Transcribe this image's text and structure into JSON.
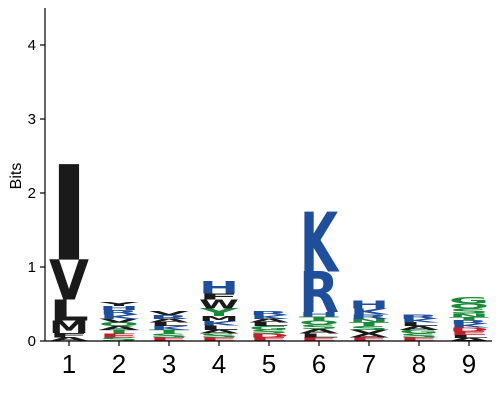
{
  "chart_data": {
    "type": "sequence-logo",
    "title": "",
    "ylabel": "Bits",
    "xlabel": "",
    "ylim": [
      0,
      4.5
    ],
    "yticks": [
      0,
      1,
      2,
      3,
      4
    ],
    "positions": [
      1,
      2,
      3,
      4,
      5,
      6,
      7,
      8,
      9
    ],
    "colors": {
      "hydrophobic": "#1a1a1a",
      "basic": "#1f4e9a",
      "polar": "#1a8a3a",
      "acidic": "#c21e2b",
      "neutral": "#6a3d9a"
    },
    "stacks": [
      {
        "position": 1,
        "letters": [
          {
            "letter": "A",
            "bits": 0.05,
            "color": "#1a1a1a"
          },
          {
            "letter": "F",
            "bits": 0.06,
            "color": "#1a1a1a"
          },
          {
            "letter": "M",
            "bits": 0.17,
            "color": "#1a1a1a"
          },
          {
            "letter": "L",
            "bits": 0.28,
            "color": "#1a1a1a"
          },
          {
            "letter": "V",
            "bits": 0.54,
            "color": "#1a1a1a"
          },
          {
            "letter": "I",
            "bits": 1.29,
            "color": "#1a1a1a"
          }
        ]
      },
      {
        "position": 2,
        "letters": [
          {
            "letter": "S",
            "bits": 0.05,
            "color": "#1a8a3a"
          },
          {
            "letter": "E",
            "bits": 0.05,
            "color": "#c21e2b"
          },
          {
            "letter": "T",
            "bits": 0.05,
            "color": "#1a8a3a"
          },
          {
            "letter": "A",
            "bits": 0.05,
            "color": "#1a1a1a"
          },
          {
            "letter": "Q",
            "bits": 0.05,
            "color": "#1a8a3a"
          },
          {
            "letter": "V",
            "bits": 0.05,
            "color": "#1a1a1a"
          },
          {
            "letter": "K",
            "bits": 0.06,
            "color": "#1f4e9a"
          },
          {
            "letter": "R",
            "bits": 0.06,
            "color": "#1f4e9a"
          },
          {
            "letter": "H",
            "bits": 0.05,
            "color": "#1f4e9a"
          },
          {
            "letter": "Y",
            "bits": 0.05,
            "color": "#1a1a1a"
          }
        ]
      },
      {
        "position": 3,
        "letters": [
          {
            "letter": "E",
            "bits": 0.05,
            "color": "#c21e2b"
          },
          {
            "letter": "S",
            "bits": 0.05,
            "color": "#1a8a3a"
          },
          {
            "letter": "T",
            "bits": 0.05,
            "color": "#1a8a3a"
          },
          {
            "letter": "K",
            "bits": 0.05,
            "color": "#1f4e9a"
          },
          {
            "letter": "L",
            "bits": 0.05,
            "color": "#1a1a1a"
          },
          {
            "letter": "A",
            "bits": 0.05,
            "color": "#1a1a1a"
          },
          {
            "letter": "R",
            "bits": 0.05,
            "color": "#1f4e9a"
          },
          {
            "letter": "V",
            "bits": 0.05,
            "color": "#1a1a1a"
          }
        ]
      },
      {
        "position": 4,
        "letters": [
          {
            "letter": "E",
            "bits": 0.05,
            "color": "#c21e2b"
          },
          {
            "letter": "S",
            "bits": 0.05,
            "color": "#1a8a3a"
          },
          {
            "letter": "A",
            "bits": 0.05,
            "color": "#1a1a1a"
          },
          {
            "letter": "L",
            "bits": 0.06,
            "color": "#1a1a1a"
          },
          {
            "letter": "K",
            "bits": 0.06,
            "color": "#1f4e9a"
          },
          {
            "letter": "M",
            "bits": 0.07,
            "color": "#1a1a1a"
          },
          {
            "letter": "Y",
            "bits": 0.1,
            "color": "#1a8a3a"
          },
          {
            "letter": "W",
            "bits": 0.12,
            "color": "#1a1a1a"
          },
          {
            "letter": "F",
            "bits": 0.08,
            "color": "#1a1a1a"
          },
          {
            "letter": "H",
            "bits": 0.17,
            "color": "#1f4e9a"
          }
        ]
      },
      {
        "position": 5,
        "letters": [
          {
            "letter": "E",
            "bits": 0.05,
            "color": "#c21e2b"
          },
          {
            "letter": "D",
            "bits": 0.05,
            "color": "#c21e2b"
          },
          {
            "letter": "S",
            "bits": 0.05,
            "color": "#1a8a3a"
          },
          {
            "letter": "G",
            "bits": 0.05,
            "color": "#1a8a3a"
          },
          {
            "letter": "L",
            "bits": 0.05,
            "color": "#1a1a1a"
          },
          {
            "letter": "A",
            "bits": 0.05,
            "color": "#1a1a1a"
          },
          {
            "letter": "K",
            "bits": 0.05,
            "color": "#1f4e9a"
          },
          {
            "letter": "R",
            "bits": 0.05,
            "color": "#1f4e9a"
          }
        ]
      },
      {
        "position": 6,
        "letters": [
          {
            "letter": "E",
            "bits": 0.05,
            "color": "#c21e2b"
          },
          {
            "letter": "L",
            "bits": 0.05,
            "color": "#1a1a1a"
          },
          {
            "letter": "A",
            "bits": 0.06,
            "color": "#1a1a1a"
          },
          {
            "letter": "S",
            "bits": 0.06,
            "color": "#1a8a3a"
          },
          {
            "letter": "Q",
            "bits": 0.05,
            "color": "#1a8a3a"
          },
          {
            "letter": "T",
            "bits": 0.06,
            "color": "#1a8a3a"
          },
          {
            "letter": "H",
            "bits": 0.06,
            "color": "#1f4e9a"
          },
          {
            "letter": "R",
            "bits": 0.55,
            "color": "#1f4e9a"
          },
          {
            "letter": "K",
            "bits": 0.81,
            "color": "#1f4e9a"
          }
        ]
      },
      {
        "position": 7,
        "letters": [
          {
            "letter": "E",
            "bits": 0.05,
            "color": "#c21e2b"
          },
          {
            "letter": "A",
            "bits": 0.05,
            "color": "#1a1a1a"
          },
          {
            "letter": "V",
            "bits": 0.05,
            "color": "#1a1a1a"
          },
          {
            "letter": "S",
            "bits": 0.05,
            "color": "#1a8a3a"
          },
          {
            "letter": "T",
            "bits": 0.05,
            "color": "#1a8a3a"
          },
          {
            "letter": "N",
            "bits": 0.05,
            "color": "#1a8a3a"
          },
          {
            "letter": "R",
            "bits": 0.06,
            "color": "#1f4e9a"
          },
          {
            "letter": "K",
            "bits": 0.08,
            "color": "#1f4e9a"
          },
          {
            "letter": "H",
            "bits": 0.1,
            "color": "#1f4e9a"
          }
        ]
      },
      {
        "position": 8,
        "letters": [
          {
            "letter": "E",
            "bits": 0.05,
            "color": "#c21e2b"
          },
          {
            "letter": "S",
            "bits": 0.05,
            "color": "#1a8a3a"
          },
          {
            "letter": "G",
            "bits": 0.05,
            "color": "#1a8a3a"
          },
          {
            "letter": "A",
            "bits": 0.05,
            "color": "#1a1a1a"
          },
          {
            "letter": "L",
            "bits": 0.05,
            "color": "#1a1a1a"
          },
          {
            "letter": "K",
            "bits": 0.05,
            "color": "#1f4e9a"
          },
          {
            "letter": "R",
            "bits": 0.06,
            "color": "#1f4e9a"
          }
        ]
      },
      {
        "position": 9,
        "letters": [
          {
            "letter": "A",
            "bits": 0.04,
            "color": "#1a1a1a"
          },
          {
            "letter": "L",
            "bits": 0.04,
            "color": "#1a1a1a"
          },
          {
            "letter": "E",
            "bits": 0.05,
            "color": "#c21e2b"
          },
          {
            "letter": "D",
            "bits": 0.05,
            "color": "#c21e2b"
          },
          {
            "letter": "K",
            "bits": 0.05,
            "color": "#1f4e9a"
          },
          {
            "letter": "R",
            "bits": 0.05,
            "color": "#1f4e9a"
          },
          {
            "letter": "T",
            "bits": 0.04,
            "color": "#1a8a3a"
          },
          {
            "letter": "N",
            "bits": 0.05,
            "color": "#1a8a3a"
          },
          {
            "letter": "S",
            "bits": 0.07,
            "color": "#1a8a3a"
          },
          {
            "letter": "Q",
            "bits": 0.07,
            "color": "#1a8a3a"
          },
          {
            "letter": "G",
            "bits": 0.09,
            "color": "#1a8a3a"
          }
        ]
      }
    ]
  }
}
